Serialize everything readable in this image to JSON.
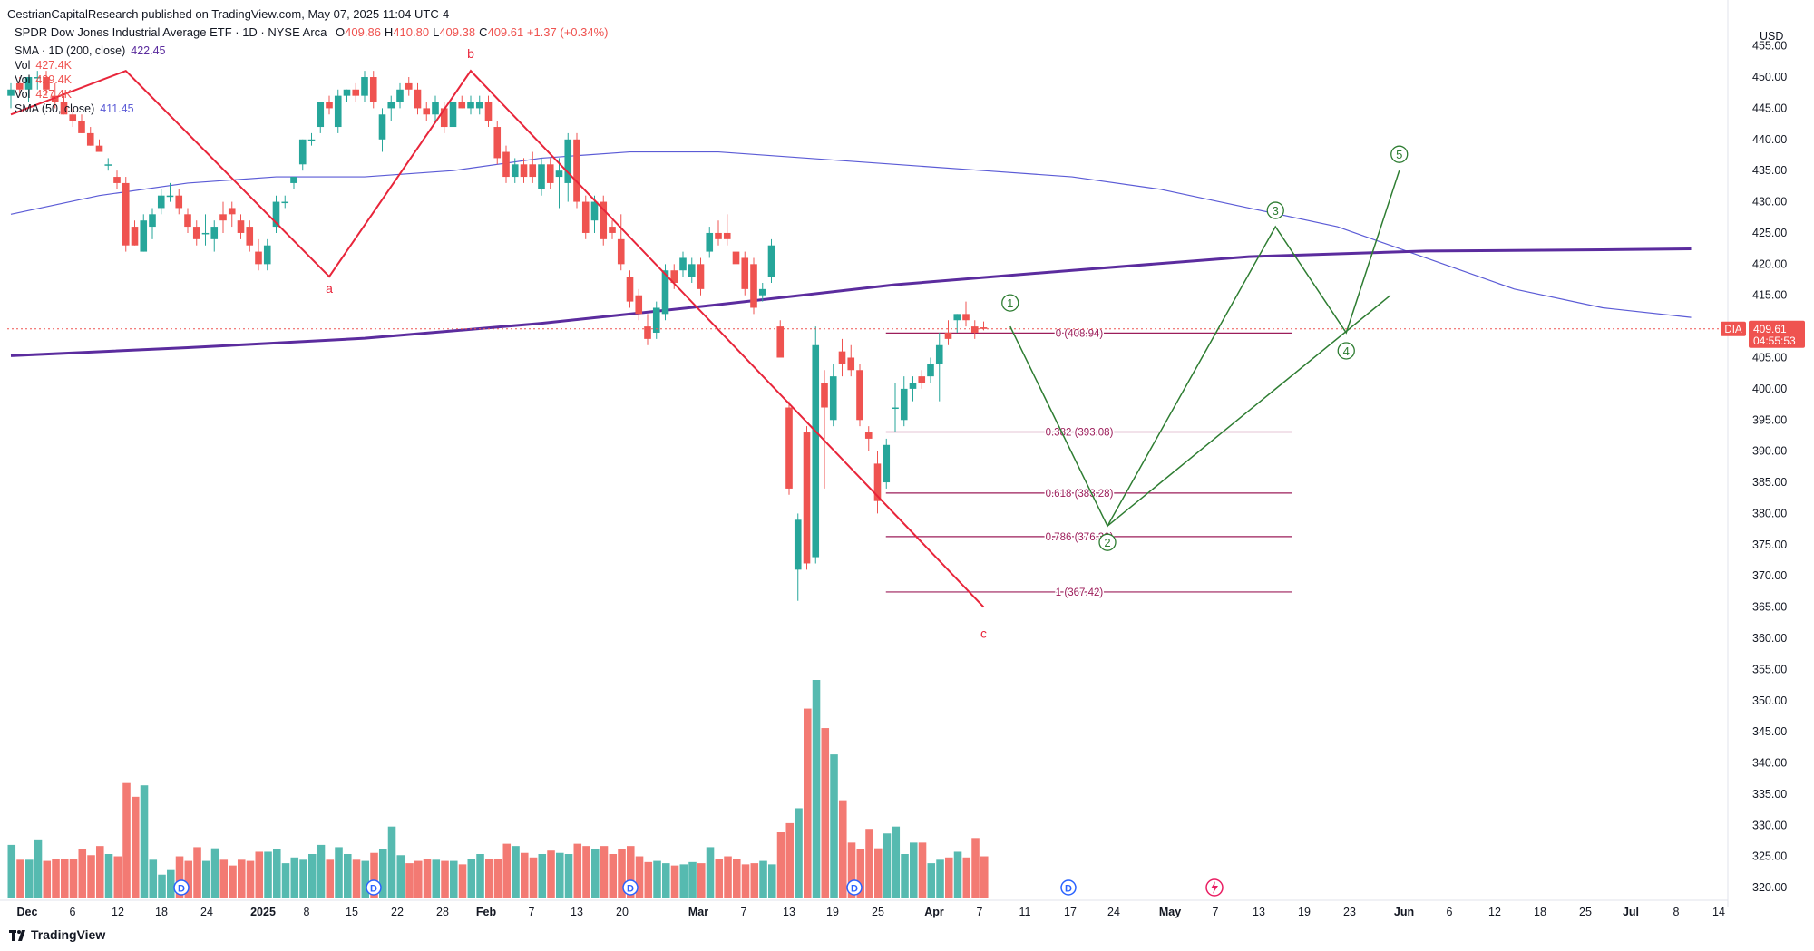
{
  "header": {
    "published": "CestrianCapitalResearch published on TradingView.com, May 07, 2025 11:04 UTC-4"
  },
  "instrument": {
    "title": "SPDR Dow Jones Industrial Average ETF · 1D · NYSE Arca",
    "ohlc": [
      {
        "k": "O",
        "v": "409.86"
      },
      {
        "k": "H",
        "v": "410.80"
      },
      {
        "k": "L",
        "v": "409.38"
      },
      {
        "k": "C",
        "v": "409.61"
      }
    ],
    "change": "+1.37 (+0.34%)"
  },
  "indicators": [
    {
      "label": "SMA · 1D (200, close)",
      "value": "422.45",
      "color": "#5b2c9e"
    },
    {
      "label": "Vol",
      "value": "427.4K",
      "color": "#ef5350"
    },
    {
      "label": "Vol",
      "value": "429.4K",
      "color": "#ef5350"
    },
    {
      "label": "Vol",
      "value": "427.4K",
      "color": "#ef5350"
    },
    {
      "label": "SMA (50, close)",
      "value": "411.45",
      "color": "#5b5bd6"
    }
  ],
  "price_axis": {
    "currency": "USD",
    "ticks": [
      "455.00",
      "450.00",
      "445.00",
      "440.00",
      "435.00",
      "430.00",
      "425.00",
      "420.00",
      "415.00",
      "410.00",
      "405.00",
      "400.00",
      "395.00",
      "390.00",
      "385.00",
      "380.00",
      "375.00",
      "370.00",
      "365.00",
      "360.00",
      "355.00",
      "350.00",
      "345.00",
      "340.00",
      "335.00",
      "330.00",
      "325.00",
      "320.00"
    ],
    "tag_symbol": "DIA",
    "tag_price": "409.61",
    "tag_countdown": "04:55:53"
  },
  "time_axis": {
    "labels": [
      "Dec",
      "6",
      "12",
      "18",
      "24",
      "2025",
      "8",
      "15",
      "22",
      "28",
      "Feb",
      "7",
      "13",
      "20",
      "Mar",
      "7",
      "13",
      "19",
      "25",
      "Apr",
      "7",
      "11",
      "17",
      "24",
      "May",
      "7",
      "13",
      "19",
      "23",
      "Jun",
      "6",
      "12",
      "18",
      "25",
      "Jul",
      "8",
      "14"
    ]
  },
  "wave_labels": {
    "abc": [
      "a",
      "b",
      "c"
    ],
    "impulse": [
      "1",
      "2",
      "3",
      "4",
      "5"
    ]
  },
  "fib_levels": [
    {
      "label": "0 (408.94)",
      "price": 408.94
    },
    {
      "label": "0.382 (393.08)",
      "price": 393.08
    },
    {
      "label": "0.618 (383.28)",
      "price": 383.28
    },
    {
      "label": "0.786 (376.30)",
      "price": 376.3
    },
    {
      "label": "1 (367.42)",
      "price": 367.42
    }
  ],
  "events": [
    "D",
    "D",
    "D",
    "D",
    "D"
  ],
  "footer": {
    "brand": "TradingView"
  },
  "colors": {
    "up": "#26a69a",
    "down": "#ef5350",
    "sma200": "#5b2c9e",
    "sma50": "#5b5bd6",
    "abc": "#e8253a",
    "impulse": "#2e7d32",
    "fib": "#9c1d5a"
  },
  "chart_data": {
    "type": "candlestick",
    "symbol": "DIA",
    "y_range": [
      316,
      458
    ],
    "candles": [
      {
        "d": "2024-11-29",
        "o": 447,
        "h": 449,
        "l": 445,
        "c": 448
      },
      {
        "d": "2024-12-02",
        "o": 449,
        "h": 450,
        "l": 447,
        "c": 448
      },
      {
        "d": "2024-12-03",
        "o": 448,
        "h": 450,
        "l": 446,
        "c": 450
      },
      {
        "d": "2024-12-04",
        "o": 450,
        "h": 451,
        "l": 448,
        "c": 450
      },
      {
        "d": "2024-12-05",
        "o": 450,
        "h": 451,
        "l": 447,
        "c": 448
      },
      {
        "d": "2024-12-06",
        "o": 447,
        "h": 449,
        "l": 445,
        "c": 446
      },
      {
        "d": "2024-12-09",
        "o": 446,
        "h": 447,
        "l": 444,
        "c": 444
      },
      {
        "d": "2024-12-10",
        "o": 444,
        "h": 445,
        "l": 442,
        "c": 443
      },
      {
        "d": "2024-12-11",
        "o": 443,
        "h": 444,
        "l": 441,
        "c": 441
      },
      {
        "d": "2024-12-12",
        "o": 441,
        "h": 442,
        "l": 439,
        "c": 439
      },
      {
        "d": "2024-12-13",
        "o": 439,
        "h": 440,
        "l": 438,
        "c": 438
      },
      {
        "d": "2024-12-16",
        "o": 436,
        "h": 437,
        "l": 435,
        "c": 436
      },
      {
        "d": "2024-12-17",
        "o": 434,
        "h": 435,
        "l": 432,
        "c": 433
      },
      {
        "d": "2024-12-18",
        "o": 433,
        "h": 434,
        "l": 422,
        "c": 423
      },
      {
        "d": "2024-12-19",
        "o": 426,
        "h": 427,
        "l": 423,
        "c": 423
      },
      {
        "d": "2024-12-20",
        "o": 422,
        "h": 428,
        "l": 422,
        "c": 427
      },
      {
        "d": "2024-12-23",
        "o": 426,
        "h": 429,
        "l": 424,
        "c": 428
      },
      {
        "d": "2024-12-24",
        "o": 429,
        "h": 432,
        "l": 428,
        "c": 431
      },
      {
        "d": "2024-12-26",
        "o": 431,
        "h": 433,
        "l": 430,
        "c": 431
      },
      {
        "d": "2024-12-27",
        "o": 431,
        "h": 432,
        "l": 428,
        "c": 429
      },
      {
        "d": "2024-12-30",
        "o": 428,
        "h": 429,
        "l": 425,
        "c": 426
      },
      {
        "d": "2024-12-31",
        "o": 426,
        "h": 427,
        "l": 423,
        "c": 424
      },
      {
        "d": "2025-01-02",
        "o": 425,
        "h": 428,
        "l": 423,
        "c": 425
      },
      {
        "d": "2025-01-03",
        "o": 424,
        "h": 427,
        "l": 422,
        "c": 426
      },
      {
        "d": "2025-01-06",
        "o": 428,
        "h": 430,
        "l": 425,
        "c": 427
      },
      {
        "d": "2025-01-07",
        "o": 429,
        "h": 430,
        "l": 426,
        "c": 428
      },
      {
        "d": "2025-01-08",
        "o": 427,
        "h": 428,
        "l": 424,
        "c": 425
      },
      {
        "d": "2025-01-10",
        "o": 426,
        "h": 427,
        "l": 422,
        "c": 423
      },
      {
        "d": "2025-01-13",
        "o": 422,
        "h": 424,
        "l": 419,
        "c": 420
      },
      {
        "d": "2025-01-14",
        "o": 420,
        "h": 424,
        "l": 419,
        "c": 423
      },
      {
        "d": "2025-01-15",
        "o": 426,
        "h": 431,
        "l": 425,
        "c": 430
      },
      {
        "d": "2025-01-16",
        "o": 430,
        "h": 431,
        "l": 429,
        "c": 430
      },
      {
        "d": "2025-01-17",
        "o": 433,
        "h": 434,
        "l": 432,
        "c": 434
      },
      {
        "d": "2025-01-21",
        "o": 436,
        "h": 440,
        "l": 435,
        "c": 440
      },
      {
        "d": "2025-01-22",
        "o": 440,
        "h": 441,
        "l": 439,
        "c": 440
      },
      {
        "d": "2025-01-23",
        "o": 442,
        "h": 446,
        "l": 441,
        "c": 446
      },
      {
        "d": "2025-01-24",
        "o": 446,
        "h": 447,
        "l": 444,
        "c": 445
      },
      {
        "d": "2025-01-27",
        "o": 442,
        "h": 448,
        "l": 441,
        "c": 447
      },
      {
        "d": "2025-01-28",
        "o": 447,
        "h": 448,
        "l": 446,
        "c": 448
      },
      {
        "d": "2025-01-29",
        "o": 448,
        "h": 449,
        "l": 446,
        "c": 447
      },
      {
        "d": "2025-01-30",
        "o": 447,
        "h": 451,
        "l": 446,
        "c": 450
      },
      {
        "d": "2025-01-31",
        "o": 450,
        "h": 451,
        "l": 445,
        "c": 446
      },
      {
        "d": "2025-02-03",
        "o": 440,
        "h": 445,
        "l": 438,
        "c": 444
      },
      {
        "d": "2025-02-04",
        "o": 445,
        "h": 447,
        "l": 443,
        "c": 446
      },
      {
        "d": "2025-02-05",
        "o": 446,
        "h": 449,
        "l": 445,
        "c": 448
      },
      {
        "d": "2025-02-06",
        "o": 449,
        "h": 450,
        "l": 447,
        "c": 448
      },
      {
        "d": "2025-02-07",
        "o": 448,
        "h": 449,
        "l": 444,
        "c": 445
      },
      {
        "d": "2025-02-10",
        "o": 445,
        "h": 446,
        "l": 443,
        "c": 444
      },
      {
        "d": "2025-02-11",
        "o": 444,
        "h": 447,
        "l": 443,
        "c": 446
      },
      {
        "d": "2025-02-12",
        "o": 445,
        "h": 446,
        "l": 441,
        "c": 442
      },
      {
        "d": "2025-02-13",
        "o": 442,
        "h": 447,
        "l": 442,
        "c": 446
      },
      {
        "d": "2025-02-14",
        "o": 446,
        "h": 447,
        "l": 445,
        "c": 445
      },
      {
        "d": "2025-02-18",
        "o": 445,
        "h": 447,
        "l": 444,
        "c": 446
      },
      {
        "d": "2025-02-19",
        "o": 445,
        "h": 447,
        "l": 444,
        "c": 446
      },
      {
        "d": "2025-02-20",
        "o": 446,
        "h": 447,
        "l": 442,
        "c": 443
      },
      {
        "d": "2025-02-21",
        "o": 442,
        "h": 443,
        "l": 436,
        "c": 437
      },
      {
        "d": "2025-02-24",
        "o": 438,
        "h": 439,
        "l": 433,
        "c": 434
      },
      {
        "d": "2025-02-25",
        "o": 434,
        "h": 437,
        "l": 433,
        "c": 436
      },
      {
        "d": "2025-02-26",
        "o": 436,
        "h": 437,
        "l": 433,
        "c": 434
      },
      {
        "d": "2025-02-27",
        "o": 436,
        "h": 438,
        "l": 433,
        "c": 434
      },
      {
        "d": "2025-02-28",
        "o": 432,
        "h": 437,
        "l": 431,
        "c": 436
      },
      {
        "d": "2025-03-03",
        "o": 436,
        "h": 437,
        "l": 432,
        "c": 433
      },
      {
        "d": "2025-03-04",
        "o": 434,
        "h": 437,
        "l": 429,
        "c": 435
      },
      {
        "d": "2025-03-05",
        "o": 433,
        "h": 441,
        "l": 430,
        "c": 440
      },
      {
        "d": "2025-03-06",
        "o": 440,
        "h": 441,
        "l": 429,
        "c": 430
      },
      {
        "d": "2025-03-07",
        "o": 430,
        "h": 431,
        "l": 424,
        "c": 425
      },
      {
        "d": "2025-03-10",
        "o": 427,
        "h": 431,
        "l": 425,
        "c": 430
      },
      {
        "d": "2025-03-11",
        "o": 430,
        "h": 431,
        "l": 423,
        "c": 424
      },
      {
        "d": "2025-03-12",
        "o": 426,
        "h": 427,
        "l": 424,
        "c": 425
      },
      {
        "d": "2025-03-13",
        "o": 424,
        "h": 428,
        "l": 419,
        "c": 420
      },
      {
        "d": "2025-03-14",
        "o": 418,
        "h": 419,
        "l": 413,
        "c": 414
      },
      {
        "d": "2025-03-17",
        "o": 415,
        "h": 416,
        "l": 411,
        "c": 412
      },
      {
        "d": "2025-03-18",
        "o": 410,
        "h": 412,
        "l": 407,
        "c": 408
      },
      {
        "d": "2025-03-19",
        "o": 409,
        "h": 414,
        "l": 408,
        "c": 413
      },
      {
        "d": "2025-03-20",
        "o": 412,
        "h": 420,
        "l": 411,
        "c": 419
      },
      {
        "d": "2025-03-21",
        "o": 419,
        "h": 420,
        "l": 416,
        "c": 417
      },
      {
        "d": "2025-03-24",
        "o": 419,
        "h": 422,
        "l": 418,
        "c": 421
      },
      {
        "d": "2025-03-25",
        "o": 418,
        "h": 421,
        "l": 417,
        "c": 420
      },
      {
        "d": "2025-03-26",
        "o": 420,
        "h": 421,
        "l": 415,
        "c": 416
      },
      {
        "d": "2025-03-27",
        "o": 422,
        "h": 426,
        "l": 421,
        "c": 425
      },
      {
        "d": "2025-03-28",
        "o": 425,
        "h": 427,
        "l": 423,
        "c": 424
      },
      {
        "d": "2025-03-31",
        "o": 425,
        "h": 428,
        "l": 423,
        "c": 424
      },
      {
        "d": "2025-04-01",
        "o": 422,
        "h": 424,
        "l": 417,
        "c": 420
      },
      {
        "d": "2025-04-02",
        "o": 421,
        "h": 422,
        "l": 415,
        "c": 416
      },
      {
        "d": "2025-04-03",
        "o": 420,
        "h": 421,
        "l": 412,
        "c": 413
      },
      {
        "d": "2025-04-04",
        "o": 415,
        "h": 417,
        "l": 414,
        "c": 416
      },
      {
        "d": "2025-04-07",
        "o": 418,
        "h": 424,
        "l": 417,
        "c": 423
      },
      {
        "d": "2025-04-08",
        "o": 410,
        "h": 411,
        "l": 405,
        "c": 405
      },
      {
        "d": "2025-04-09",
        "o": 397,
        "h": 398,
        "l": 383,
        "c": 384
      },
      {
        "d": "2025-04-10",
        "o": 371,
        "h": 380,
        "l": 366,
        "c": 379
      },
      {
        "d": "2025-04-11",
        "o": 393,
        "h": 394,
        "l": 371,
        "c": 372
      },
      {
        "d": "2025-04-14",
        "o": 373,
        "h": 410,
        "l": 372,
        "c": 407
      },
      {
        "d": "2025-04-15",
        "o": 401,
        "h": 403,
        "l": 384,
        "c": 397
      },
      {
        "d": "2025-04-16",
        "o": 395,
        "h": 404,
        "l": 394,
        "c": 402
      },
      {
        "d": "2025-04-17",
        "o": 406,
        "h": 408,
        "l": 402,
        "c": 404
      },
      {
        "d": "2025-04-21",
        "o": 405,
        "h": 407,
        "l": 402,
        "c": 403
      },
      {
        "d": "2025-04-22",
        "o": 403,
        "h": 404,
        "l": 394,
        "c": 395
      },
      {
        "d": "2025-04-23",
        "o": 393,
        "h": 394,
        "l": 390,
        "c": 392
      },
      {
        "d": "2025-04-24",
        "o": 388,
        "h": 390,
        "l": 380,
        "c": 382
      },
      {
        "d": "2025-04-25",
        "o": 385,
        "h": 392,
        "l": 384,
        "c": 391
      },
      {
        "d": "2025-04-28",
        "o": 397,
        "h": 401,
        "l": 393,
        "c": 397
      },
      {
        "d": "2025-04-29",
        "o": 395,
        "h": 402,
        "l": 394,
        "c": 400
      },
      {
        "d": "2025-04-30",
        "o": 400,
        "h": 402,
        "l": 398,
        "c": 401
      },
      {
        "d": "2025-05-01",
        "o": 402,
        "h": 403,
        "l": 400,
        "c": 401
      },
      {
        "d": "2025-05-02",
        "o": 402,
        "h": 405,
        "l": 401,
        "c": 404
      },
      {
        "d": "2025-05-05",
        "o": 404,
        "h": 409,
        "l": 398,
        "c": 407
      },
      {
        "d": "2025-05-06",
        "o": 409,
        "h": 411,
        "l": 407,
        "c": 408
      },
      {
        "d": "2025-05-07",
        "o": 411,
        "h": 412,
        "l": 409,
        "c": 412
      },
      {
        "d": "2025-05-08",
        "o": 412,
        "h": 414,
        "l": 410,
        "c": 411
      },
      {
        "d": "2025-05-09",
        "o": 410,
        "h": 411,
        "l": 408,
        "c": 409
      },
      {
        "d": "2025-05-12",
        "o": 409.86,
        "h": 410.8,
        "l": 409.38,
        "c": 409.61
      }
    ],
    "volume_relative": [
      0.46,
      0.33,
      0.33,
      0.5,
      0.32,
      0.34,
      0.34,
      0.34,
      0.42,
      0.37,
      0.45,
      0.38,
      0.36,
      1.0,
      0.88,
      0.98,
      0.33,
      0.2,
      0.24,
      0.36,
      0.32,
      0.44,
      0.32,
      0.43,
      0.33,
      0.28,
      0.33,
      0.32,
      0.4,
      0.4,
      0.42,
      0.3,
      0.35,
      0.33,
      0.38,
      0.46,
      0.33,
      0.44,
      0.38,
      0.33,
      0.32,
      0.39,
      0.42,
      0.62,
      0.37,
      0.3,
      0.32,
      0.34,
      0.33,
      0.32,
      0.32,
      0.29,
      0.34,
      0.38,
      0.34,
      0.34,
      0.47,
      0.45,
      0.39,
      0.35,
      0.38,
      0.41,
      0.39,
      0.38,
      0.47,
      0.45,
      0.42,
      0.45,
      0.38,
      0.42,
      0.45,
      0.36,
      0.31,
      0.32,
      0.3,
      0.28,
      0.29,
      0.31,
      0.3,
      0.44,
      0.34,
      0.36,
      0.34,
      0.29,
      0.3,
      0.32,
      0.29,
      0.57,
      0.65,
      0.78,
      1.65,
      1.9,
      1.48,
      1.25,
      0.85,
      0.48,
      0.42,
      0.6,
      0.43,
      0.56,
      0.62,
      0.38,
      0.48,
      0.48,
      0.3,
      0.33,
      0.35,
      0.4,
      0.35,
      0.52,
      0.36
    ],
    "sma200": [
      [
        0,
        405.3
      ],
      [
        20,
        406.6
      ],
      [
        40,
        408.1
      ],
      [
        60,
        410.5
      ],
      [
        80,
        413.5
      ],
      [
        100,
        416.7
      ],
      [
        120,
        419.0
      ],
      [
        140,
        421.2
      ],
      [
        160,
        422.1
      ],
      [
        180,
        422.3
      ],
      [
        190,
        422.45
      ]
    ],
    "sma50": [
      [
        0,
        428
      ],
      [
        10,
        431
      ],
      [
        20,
        433
      ],
      [
        30,
        434
      ],
      [
        40,
        434
      ],
      [
        50,
        435
      ],
      [
        60,
        437
      ],
      [
        70,
        438
      ],
      [
        80,
        438
      ],
      [
        90,
        437
      ],
      [
        100,
        436
      ],
      [
        110,
        435
      ],
      [
        120,
        434
      ],
      [
        130,
        432
      ],
      [
        140,
        429
      ],
      [
        150,
        426
      ],
      [
        160,
        421
      ],
      [
        170,
        416
      ],
      [
        180,
        413
      ],
      [
        190,
        411.45
      ]
    ],
    "abc_path": [
      [
        0,
        444
      ],
      [
        13,
        451
      ],
      [
        36,
        418
      ],
      [
        52,
        451
      ],
      [
        110,
        365
      ]
    ],
    "impulse_path": [
      [
        113,
        410
      ],
      [
        124,
        378
      ],
      [
        143,
        426
      ],
      [
        151,
        409
      ],
      [
        157,
        435
      ]
    ],
    "projection_line": [
      [
        124,
        378
      ],
      [
        156,
        415
      ]
    ],
    "fib": {
      "start_index": 101,
      "end_index": 119
    }
  }
}
